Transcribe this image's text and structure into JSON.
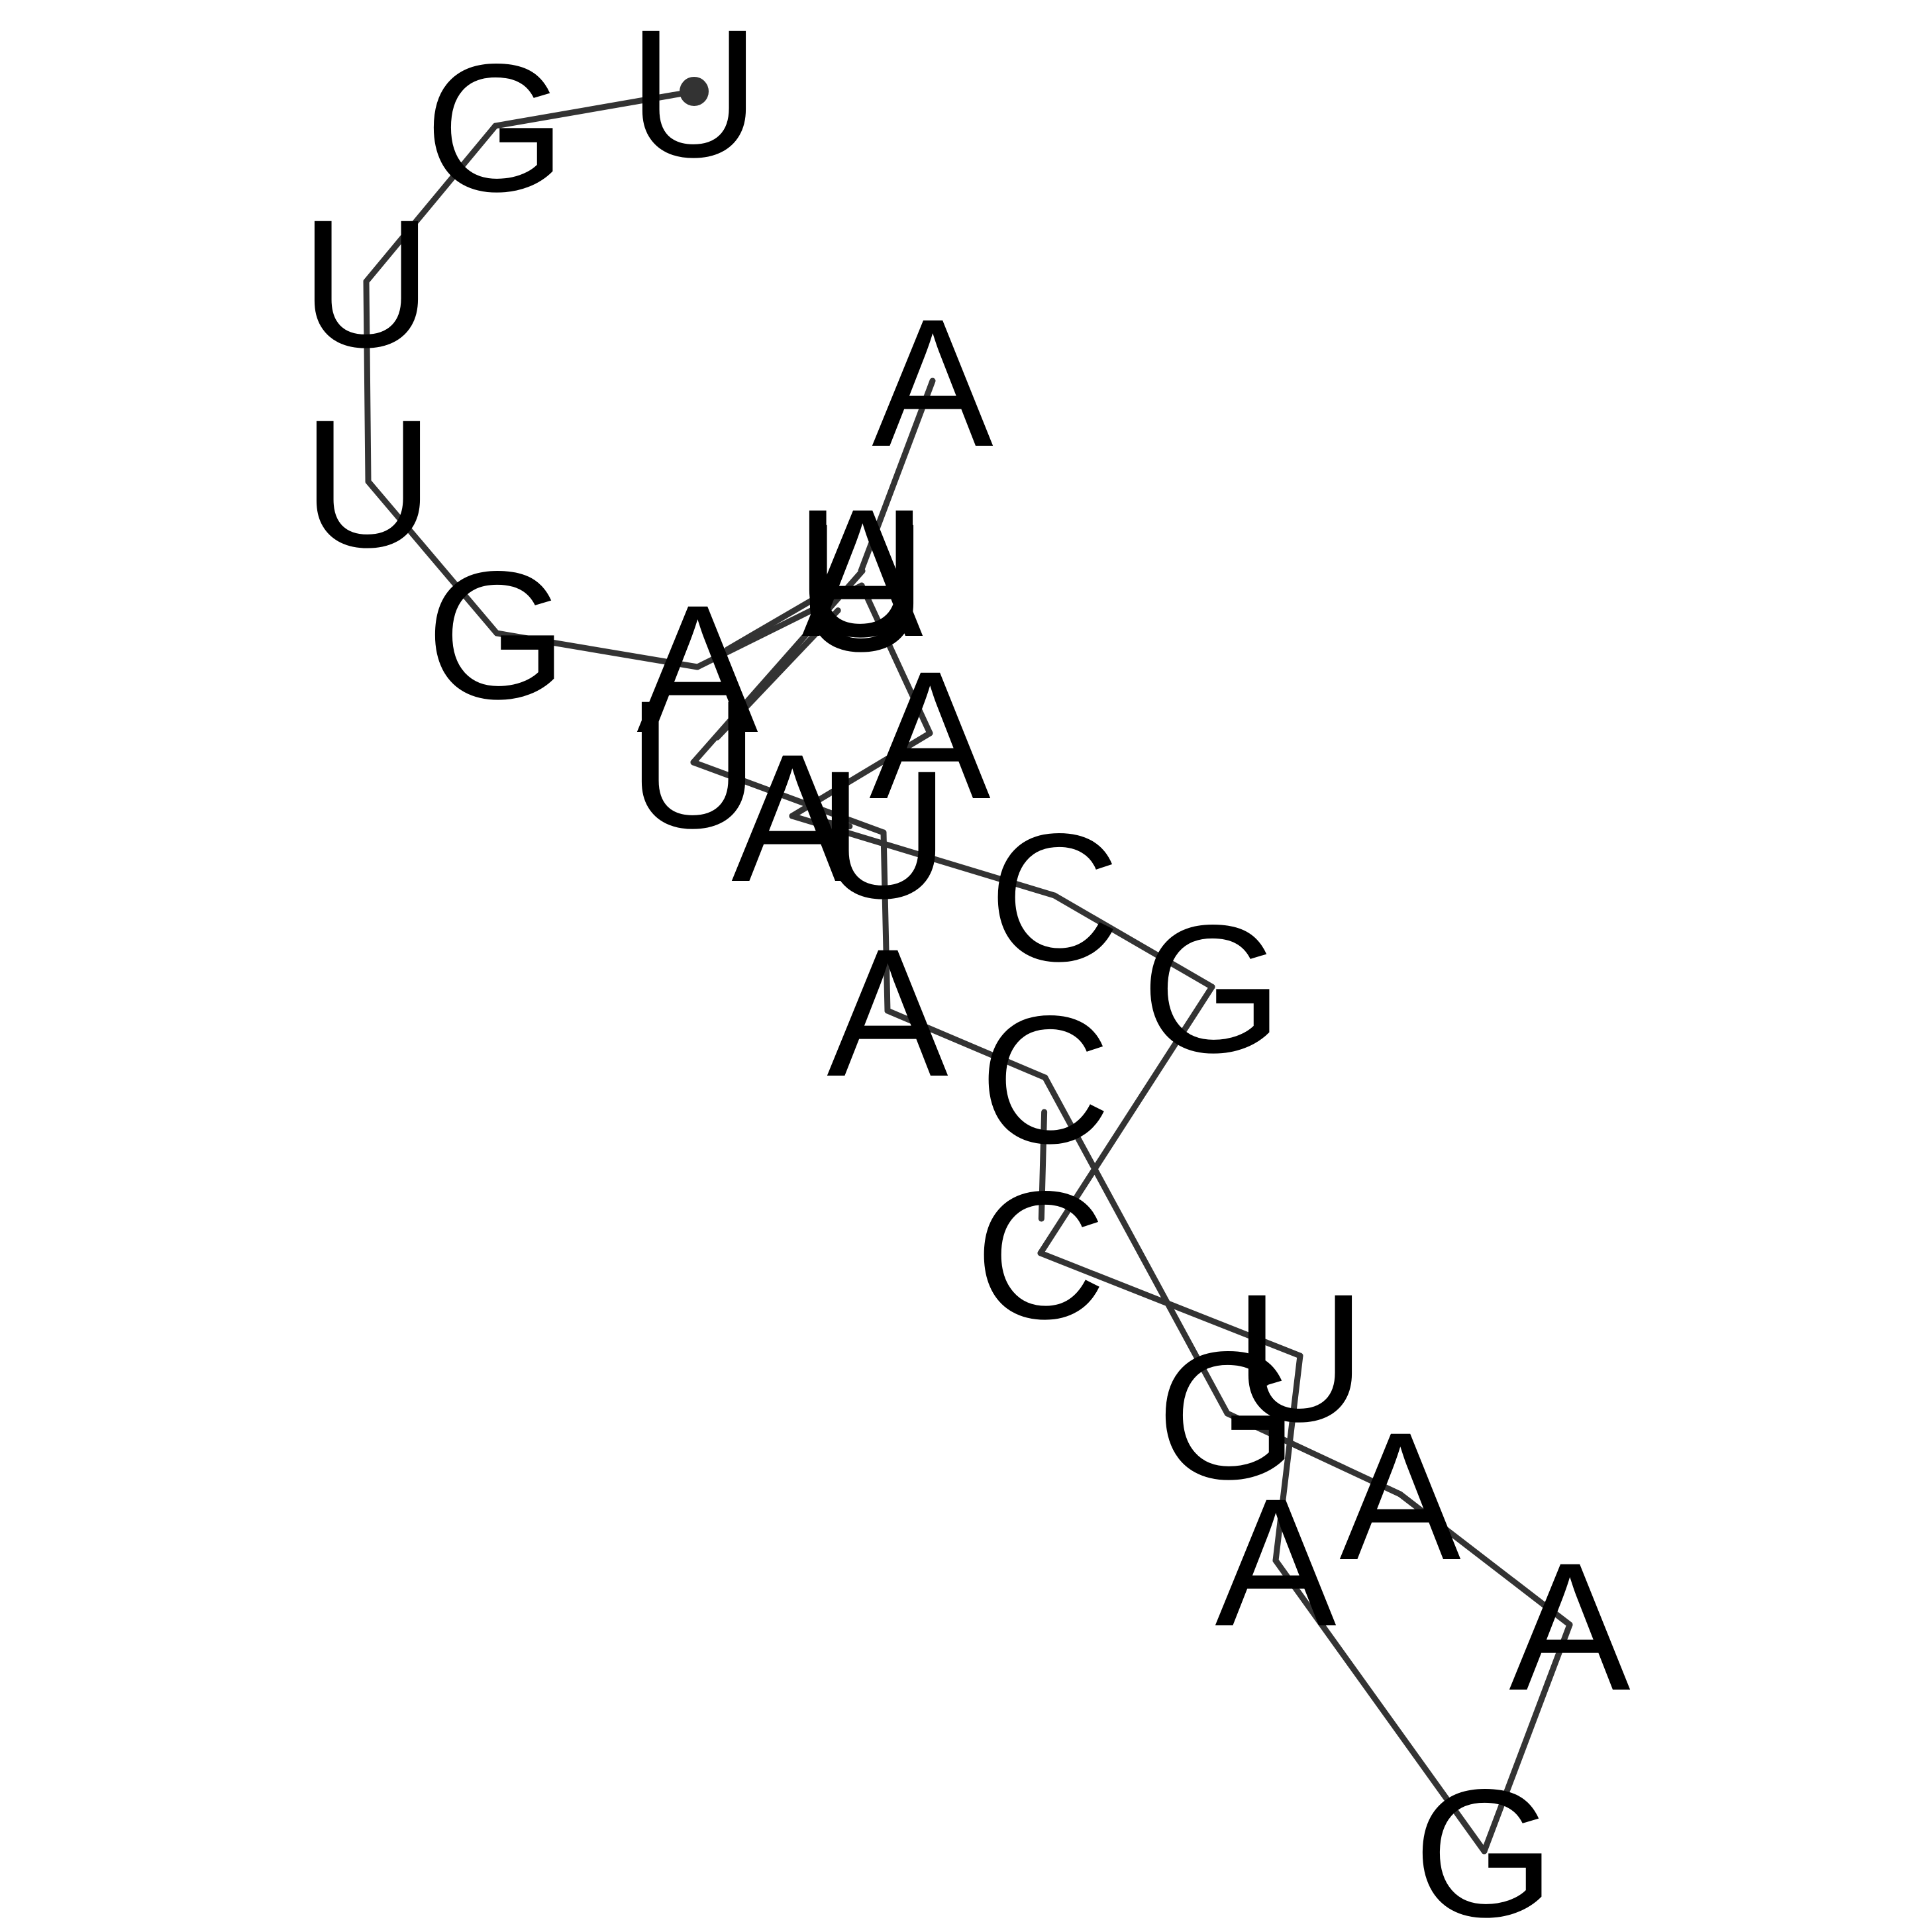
{
  "structure": {
    "sequence": [
      "U",
      "G",
      "U",
      "U",
      "G",
      "A",
      "U",
      "A",
      "A",
      "C",
      "G",
      "C",
      "U",
      "A",
      "G",
      "A",
      "A",
      "G",
      "C",
      "A",
      "U",
      "U",
      "A",
      "U",
      "A"
    ],
    "pairs": [
      [
        5,
        22
      ],
      [
        6,
        21
      ],
      [
        8,
        20
      ],
      [
        11,
        18
      ],
      [
        12,
        17
      ]
    ],
    "five_prime_marker": "filled-circle"
  },
  "colors": {
    "background": "#ffffff",
    "backbone": "#333333",
    "pair": "#333333",
    "text": "#000000"
  }
}
